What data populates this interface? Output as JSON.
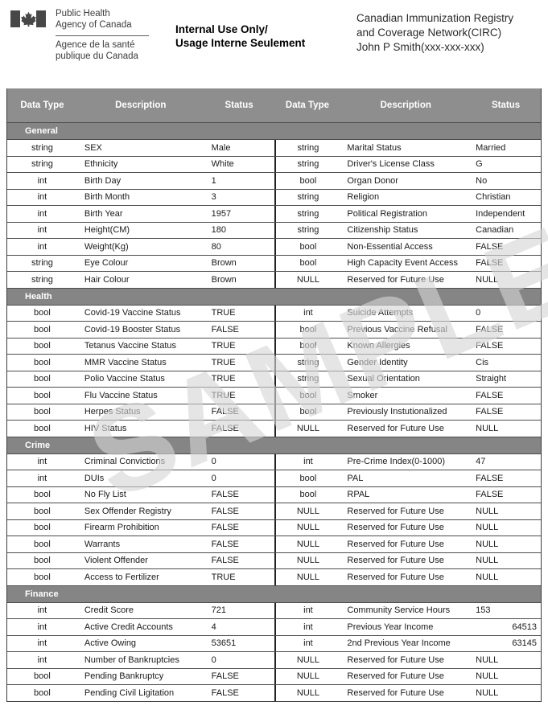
{
  "document_header": {
    "agency_en_line1": "Public Health",
    "agency_en_line2": "Agency of Canada",
    "agency_fr_line1": "Agence de la santé",
    "agency_fr_line2": "publique du Canada",
    "classification_line1": "Internal Use Only/",
    "classification_line2": "Usage Interne Seulement",
    "registry_line1": "Canadian Immunization Registry",
    "registry_line2": "and Coverage Network(CIRC)",
    "subject_line": "John P Smith(xxx-xxx-xxx)"
  },
  "watermark_text": "SAMPLE",
  "colors": {
    "table_header_bg": "#8e8e8e",
    "section_bar_bg": "#858585",
    "row_border": "#4d4d4d",
    "outer_border": "#3c3c3c",
    "divider": "#222222",
    "header_text": "#ffffff",
    "body_text": "#1a1a1a",
    "flag_gray": "#474747",
    "watermark_color": "rgba(213,213,213,0.62)"
  },
  "table": {
    "columns": [
      "Data Type",
      "Description",
      "Status",
      "Data Type",
      "Description",
      "Status"
    ],
    "sections": [
      {
        "title": "General",
        "rows": [
          [
            "string",
            "SEX",
            "Male",
            "string",
            "Marital Status",
            "Married"
          ],
          [
            "string",
            "Ethnicity",
            "White",
            "string",
            "Driver's License Class",
            "G"
          ],
          [
            "int",
            "Birth Day",
            "1",
            "bool",
            "Organ Donor",
            "No"
          ],
          [
            "int",
            "Birth Month",
            "3",
            "string",
            "Religion",
            "Christian"
          ],
          [
            "int",
            "Birth Year",
            "1957",
            "string",
            "Political Registration",
            "Independent"
          ],
          [
            "int",
            "Height(CM)",
            "180",
            "string",
            "Citizenship Status",
            "Canadian"
          ],
          [
            "int",
            "Weight(Kg)",
            "80",
            "bool",
            "Non-Essential Access",
            "FALSE"
          ],
          [
            "string",
            "Eye Colour",
            "Brown",
            "bool",
            "High Capacity Event Access",
            "FALSE"
          ],
          [
            "string",
            "Hair Colour",
            "Brown",
            "NULL",
            "Reserved for Future Use",
            "NULL"
          ]
        ]
      },
      {
        "title": "Health",
        "rows": [
          [
            "bool",
            "Covid-19 Vaccine Status",
            "TRUE",
            "int",
            "Suicide Attempts",
            "0"
          ],
          [
            "bool",
            "Covid-19 Booster Status",
            "FALSE",
            "bool",
            "Previous Vaccine Refusal",
            "FALSE"
          ],
          [
            "bool",
            "Tetanus Vaccine Status",
            "TRUE",
            "bool",
            "Known Allergies",
            "FALSE"
          ],
          [
            "bool",
            "MMR Vaccine Status",
            "TRUE",
            "string",
            "Gender Identity",
            "Cis"
          ],
          [
            "bool",
            "Polio Vaccine Status",
            "TRUE",
            "string",
            "Sexual Orientation",
            "Straight"
          ],
          [
            "bool",
            "Flu Vaccine Status",
            "TRUE",
            "bool",
            "Smoker",
            "FALSE"
          ],
          [
            "bool",
            "Herpes Status",
            "FALSE",
            "bool",
            "Previously Instutionalized",
            "FALSE"
          ],
          [
            "bool",
            "HIV Status",
            "FALSE",
            "NULL",
            "Reserved for Future Use",
            "NULL"
          ]
        ]
      },
      {
        "title": "Crime",
        "rows": [
          [
            "int",
            "Criminal Convictions",
            "0",
            "int",
            "Pre-Crime Index(0-1000)",
            "47"
          ],
          [
            "int",
            "DUIs",
            "0",
            "bool",
            "PAL",
            "FALSE"
          ],
          [
            "bool",
            "No Fly List",
            "FALSE",
            "bool",
            "RPAL",
            "FALSE"
          ],
          [
            "bool",
            "Sex Offender Registry",
            "FALSE",
            "NULL",
            "Reserved for Future Use",
            "NULL"
          ],
          [
            "bool",
            "Firearm Prohibition",
            "FALSE",
            "NULL",
            "Reserved for Future Use",
            "NULL"
          ],
          [
            "bool",
            "Warrants",
            "FALSE",
            "NULL",
            "Reserved for Future Use",
            "NULL"
          ],
          [
            "bool",
            "Violent Offender",
            "FALSE",
            "NULL",
            "Reserved for Future Use",
            "NULL"
          ],
          [
            "bool",
            "Access to Fertilizer",
            "TRUE",
            "NULL",
            "Reserved for Future Use",
            "NULL"
          ]
        ]
      },
      {
        "title": "Finance",
        "rows": [
          [
            "int",
            "Credit Score",
            "721",
            "int",
            "Community Service Hours",
            "153"
          ],
          [
            "int",
            "Active Credit Accounts",
            "4",
            "int",
            "Previous Year Income",
            {
              "t": "64513",
              "align": "right"
            }
          ],
          [
            "int",
            "Active Owing",
            "53651",
            "int",
            "2nd Previous Year Income",
            {
              "t": "63145",
              "align": "right"
            }
          ],
          [
            "int",
            "Number of Bankruptcies",
            "0",
            "NULL",
            "Reserved for Future Use",
            "NULL"
          ],
          [
            "bool",
            "Pending Bankruptcy",
            "FALSE",
            "NULL",
            "Reserved for Future Use",
            "NULL"
          ],
          [
            "bool",
            "Pending Civil Ligitation",
            "FALSE",
            "NULL",
            "Reserved for Future Use",
            "NULL"
          ]
        ]
      }
    ]
  }
}
